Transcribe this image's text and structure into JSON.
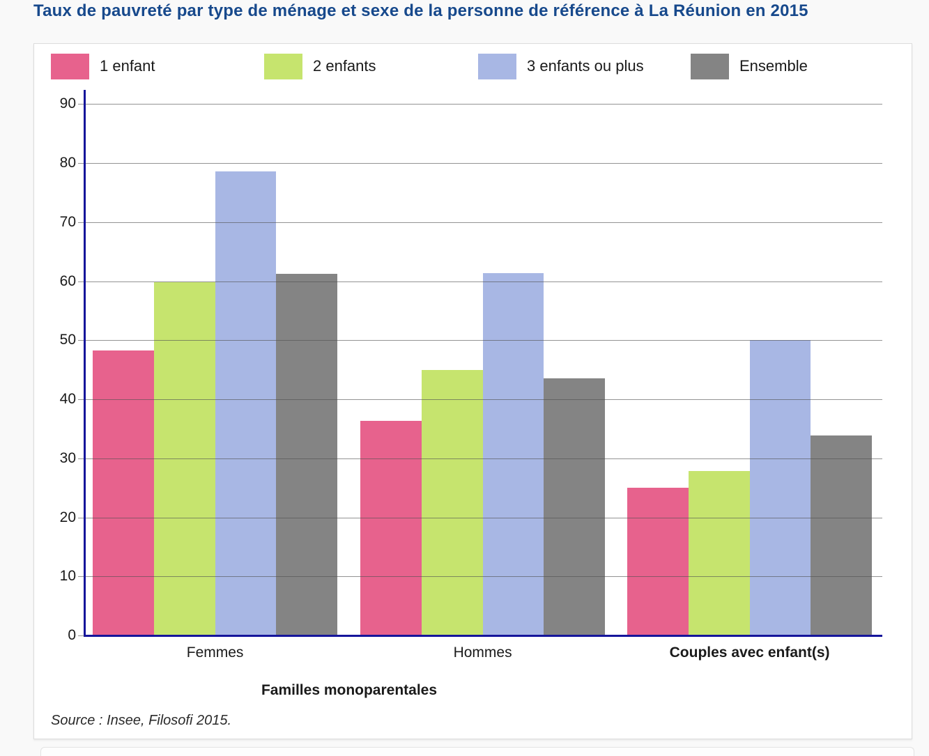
{
  "page": {
    "title": "Taux de pauvreté par type de ménage et sexe de la personne de référence à La Réunion en 2015",
    "source": "Source : Insee, Filosofi 2015."
  },
  "colors": {
    "title_blue": "#17498c",
    "axis_navy": "#15159b",
    "gridline_gray": "#505050",
    "panel_border": "#dcdcdc"
  },
  "chart_data": {
    "type": "bar",
    "title": "Taux de pauvreté par type de ménage et sexe de la personne de référence à La Réunion en 2015",
    "categories": [
      "Femmes",
      "Hommes",
      "Couples avec enfant(s)"
    ],
    "categories_bold": [
      false,
      false,
      true
    ],
    "category_group_label": "Familles monoparentales",
    "category_group_spans": [
      0,
      1
    ],
    "series": [
      {
        "name": "1 enfant",
        "color": "#e7628d",
        "values": [
          48.3,
          36.3,
          25.0
        ]
      },
      {
        "name": "2 enfants",
        "color": "#c6e46e",
        "values": [
          59.8,
          45.0,
          27.9
        ]
      },
      {
        "name": "3 enfants ou plus",
        "color": "#a8b7e4",
        "values": [
          78.6,
          61.4,
          50.0
        ]
      },
      {
        "name": "Ensemble",
        "color": "#848484",
        "values": [
          61.2,
          43.6,
          33.9
        ]
      }
    ],
    "ylabel": "",
    "xlabel": "",
    "ylim": [
      0,
      90
    ],
    "ytick_step": 10,
    "yticks": [
      0,
      10,
      20,
      30,
      40,
      50,
      60,
      70,
      80,
      90
    ],
    "grid": true,
    "legend_position": "top"
  }
}
